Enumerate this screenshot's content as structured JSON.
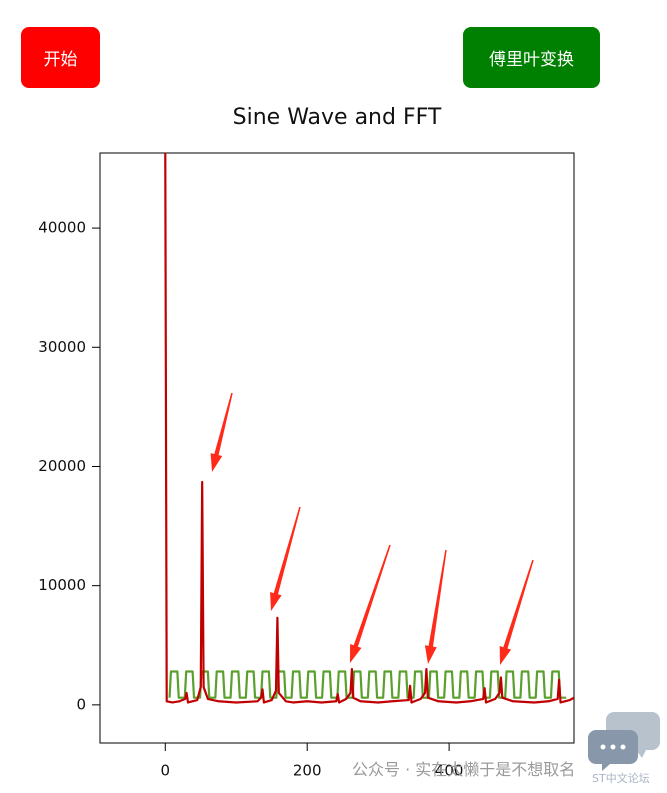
{
  "buttons": [
    "开始",
    "傅里叶变换"
  ],
  "watermark": "公众号 · 实在太懒于是不想取名",
  "forum_label": "ST中文论坛",
  "chart_data": {
    "type": "line",
    "title": "Sine Wave and FFT",
    "xlim": [
      -92,
      576
    ],
    "xticks": [
      0,
      200,
      400
    ],
    "ylim": [
      -3200,
      46300
    ],
    "yticks": [
      0,
      10000,
      20000,
      30000,
      40000
    ],
    "series": [
      {
        "color": "#5aa02c",
        "x": [
          6,
          8,
          17,
          19,
          27.5,
          29.5,
          38.5,
          40.5,
          49,
          51,
          60,
          62,
          70.5,
          72.5,
          81.5,
          83.5,
          92,
          94,
          103,
          105,
          113.5,
          115.5,
          124.5,
          126.5,
          135,
          137,
          146,
          148,
          156.5,
          158.5,
          167.5,
          169.5,
          178,
          180,
          189,
          191,
          199.5,
          201.5,
          210.5,
          212.5,
          221,
          223,
          232,
          234,
          242.5,
          244.5,
          253.5,
          255.5,
          264,
          266,
          275,
          277,
          285.5,
          287.5,
          296.5,
          298.5,
          307,
          309,
          318,
          320,
          328.5,
          330.5,
          339.5,
          341.5,
          350,
          352,
          361,
          363,
          371.5,
          373.5,
          382.5,
          384.5,
          393,
          395,
          404,
          406,
          414.5,
          416.5,
          425.5,
          427.5,
          436,
          438,
          447,
          449,
          457.5,
          459.5,
          468.5,
          470.5,
          479,
          481,
          490,
          492,
          500.5,
          502.5,
          511.5,
          513.5,
          522,
          524,
          533,
          535,
          543.5,
          545.5,
          554.5,
          556.5,
          565
        ],
        "values": [
          600,
          2800,
          2800,
          600,
          600,
          2800,
          2800,
          600,
          600,
          2800,
          2800,
          600,
          600,
          2800,
          2800,
          600,
          600,
          2800,
          2800,
          600,
          600,
          2800,
          2800,
          600,
          600,
          2800,
          2800,
          600,
          600,
          2800,
          2800,
          600,
          600,
          2800,
          2800,
          600,
          600,
          2800,
          2800,
          600,
          600,
          2800,
          2800,
          600,
          600,
          2800,
          2800,
          600,
          600,
          2800,
          2800,
          600,
          600,
          2800,
          2800,
          600,
          600,
          2800,
          2800,
          600,
          600,
          2800,
          2800,
          600,
          600,
          2800,
          2800,
          600,
          600,
          2800,
          2800,
          600,
          600,
          2800,
          2800,
          600,
          600,
          2800,
          2800,
          600,
          600,
          2800,
          2800,
          600,
          600,
          2800,
          2800,
          600,
          600,
          2800,
          2800,
          600,
          600,
          2800,
          2800,
          600,
          600,
          2800,
          2800,
          600,
          600,
          2800,
          2800,
          600,
          600
        ]
      },
      {
        "color": "#c00000",
        "x": [
          0,
          2,
          10,
          20,
          28,
          30,
          32,
          45,
          50,
          52,
          54,
          60,
          75,
          100,
          130,
          135,
          137,
          139,
          150,
          156,
          158,
          160,
          170,
          180,
          200,
          220,
          241,
          243,
          245,
          255,
          261,
          263,
          265,
          275,
          300,
          320,
          343,
          345,
          347,
          360,
          366,
          368,
          370,
          385,
          410,
          430,
          448,
          450,
          452,
          465,
          471,
          473,
          475,
          490,
          520,
          540,
          553,
          555,
          557,
          570,
          576
        ],
        "values": [
          46300,
          300,
          200,
          300,
          500,
          1000,
          200,
          400,
          1500,
          18700,
          1500,
          500,
          300,
          200,
          300,
          600,
          1300,
          200,
          400,
          1200,
          7300,
          1000,
          300,
          200,
          300,
          200,
          300,
          900,
          200,
          500,
          1000,
          3000,
          600,
          300,
          200,
          300,
          400,
          1600,
          200,
          500,
          1000,
          3000,
          600,
          300,
          200,
          300,
          500,
          1400,
          200,
          500,
          1000,
          2300,
          600,
          300,
          200,
          300,
          500,
          2100,
          200,
          400,
          600
        ]
      }
    ]
  }
}
